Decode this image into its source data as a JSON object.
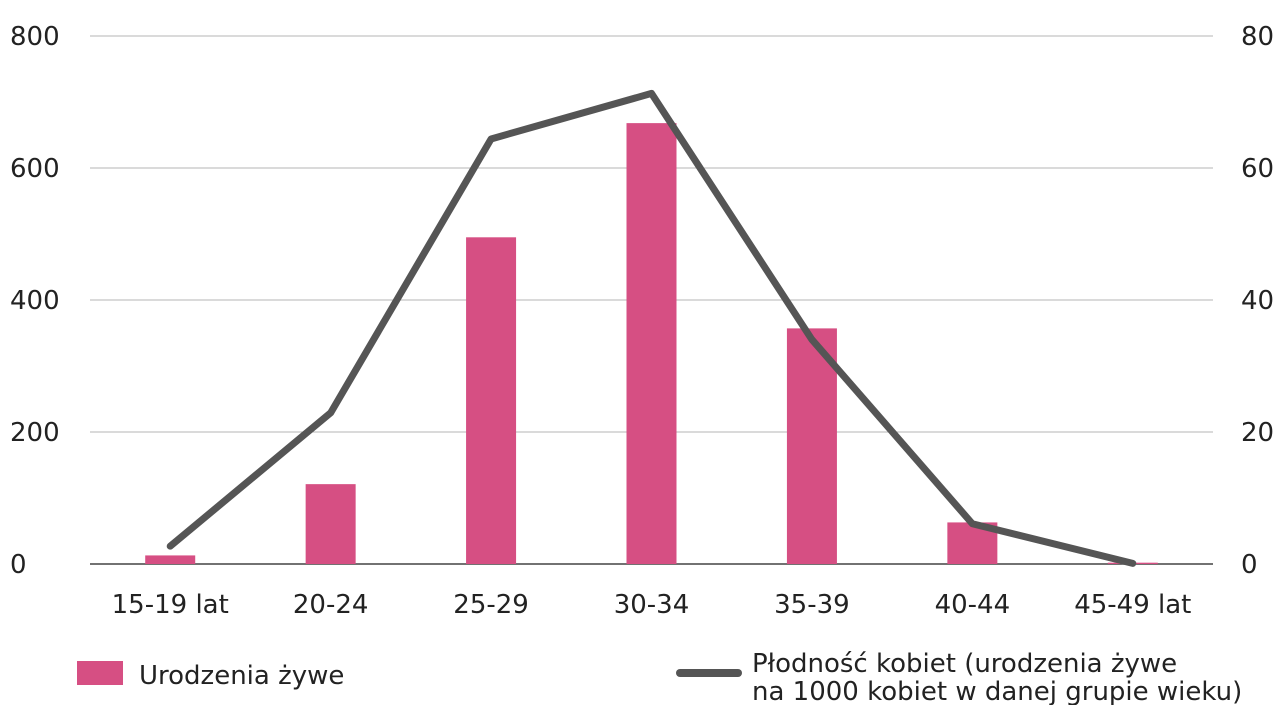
{
  "chart_data": {
    "type": "bar",
    "categories": [
      "15-19 lat",
      "20-24",
      "25-29",
      "30-34",
      "35-39",
      "40-44",
      "45-49 lat"
    ],
    "series": [
      {
        "name": "Urodzenia żywe",
        "type": "bar",
        "axis": "left",
        "color": "#d64f83",
        "values": [
          13,
          121,
          495,
          668,
          357,
          63,
          2
        ]
      },
      {
        "name": "Płodność kobiet (urodzenia żywe na 1000 kobiet w danej grupie wieku)",
        "type": "line",
        "axis": "right",
        "color": "#555555",
        "values": [
          2.7,
          22.9,
          64.4,
          71.3,
          34.0,
          6.1,
          0.1
        ]
      }
    ],
    "y_left": {
      "ylim": [
        0,
        800
      ],
      "ticks": [
        "0",
        "200",
        "400",
        "600",
        "800"
      ]
    },
    "y_right": {
      "ylim": [
        0,
        80
      ],
      "ticks": [
        "0",
        "20",
        "40",
        "60",
        "80"
      ]
    },
    "grid": true,
    "legend": {
      "position": "bottom",
      "items": [
        {
          "label": "Urodzenia żywe",
          "symbol": "bar",
          "color": "#d64f83"
        },
        {
          "label_line1": "Płodność kobiet (urodzenia żywe",
          "label_line2": "na 1000 kobiet w danej grupie wieku)",
          "symbol": "line",
          "color": "#555555"
        }
      ]
    }
  }
}
